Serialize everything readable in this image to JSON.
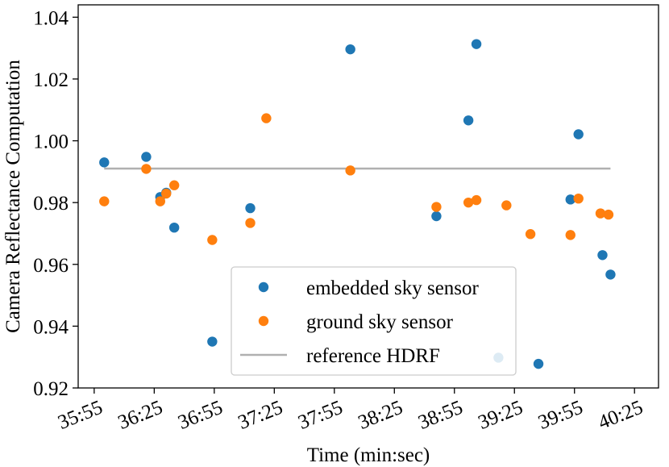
{
  "chart_data": {
    "type": "scatter",
    "xlabel": "Time (min:sec)",
    "ylabel": "Camera Reflectance Computation",
    "x_tick_labels": [
      "35:55",
      "36:25",
      "36:55",
      "37:25",
      "37:55",
      "38:25",
      "38:55",
      "39:25",
      "39:55",
      "40:25"
    ],
    "x_ticks_seconds": [
      2155,
      2185,
      2215,
      2245,
      2275,
      2305,
      2335,
      2365,
      2395,
      2425
    ],
    "x_unit": "seconds",
    "xlim": [
      2147,
      2437
    ],
    "y_tick_labels": [
      "0.92",
      "0.94",
      "0.96",
      "0.98",
      "1.00",
      "1.02",
      "1.04"
    ],
    "y_ticks": [
      0.92,
      0.94,
      0.96,
      0.98,
      1.0,
      1.02,
      1.04
    ],
    "ylim": [
      0.92,
      1.044
    ],
    "grid": false,
    "legend_position": "lower center",
    "series": [
      {
        "name": "embedded sky sensor",
        "kind": "scatter",
        "color": "#1f77b4",
        "x": [
          2160,
          2181,
          2188,
          2191,
          2195,
          2214,
          2233,
          2283,
          2326,
          2342,
          2346,
          2357,
          2377,
          2393,
          2397,
          2409,
          2413
        ],
        "y": [
          0.993,
          0.9948,
          0.9818,
          0.9832,
          0.9719,
          0.935,
          0.9782,
          1.0296,
          0.9756,
          1.0066,
          1.0313,
          0.9298,
          0.9278,
          0.981,
          1.0021,
          0.963,
          0.9567
        ]
      },
      {
        "name": "ground sky sensor",
        "kind": "scatter",
        "color": "#ff7f0e",
        "x": [
          2160,
          2181,
          2188,
          2191,
          2195,
          2214,
          2233,
          2241,
          2283,
          2326,
          2342,
          2346,
          2361,
          2373,
          2393,
          2397,
          2408,
          2412
        ],
        "y": [
          0.9804,
          0.9909,
          0.9804,
          0.9829,
          0.9856,
          0.9679,
          0.9734,
          1.0073,
          0.9904,
          0.9786,
          0.98,
          0.9808,
          0.9791,
          0.9698,
          0.9695,
          0.9813,
          0.9765,
          0.9761
        ]
      },
      {
        "name": "reference HDRF",
        "kind": "line",
        "color": "#b0b0b0",
        "x": [
          2160,
          2413
        ],
        "y": [
          0.991,
          0.991
        ]
      }
    ]
  }
}
